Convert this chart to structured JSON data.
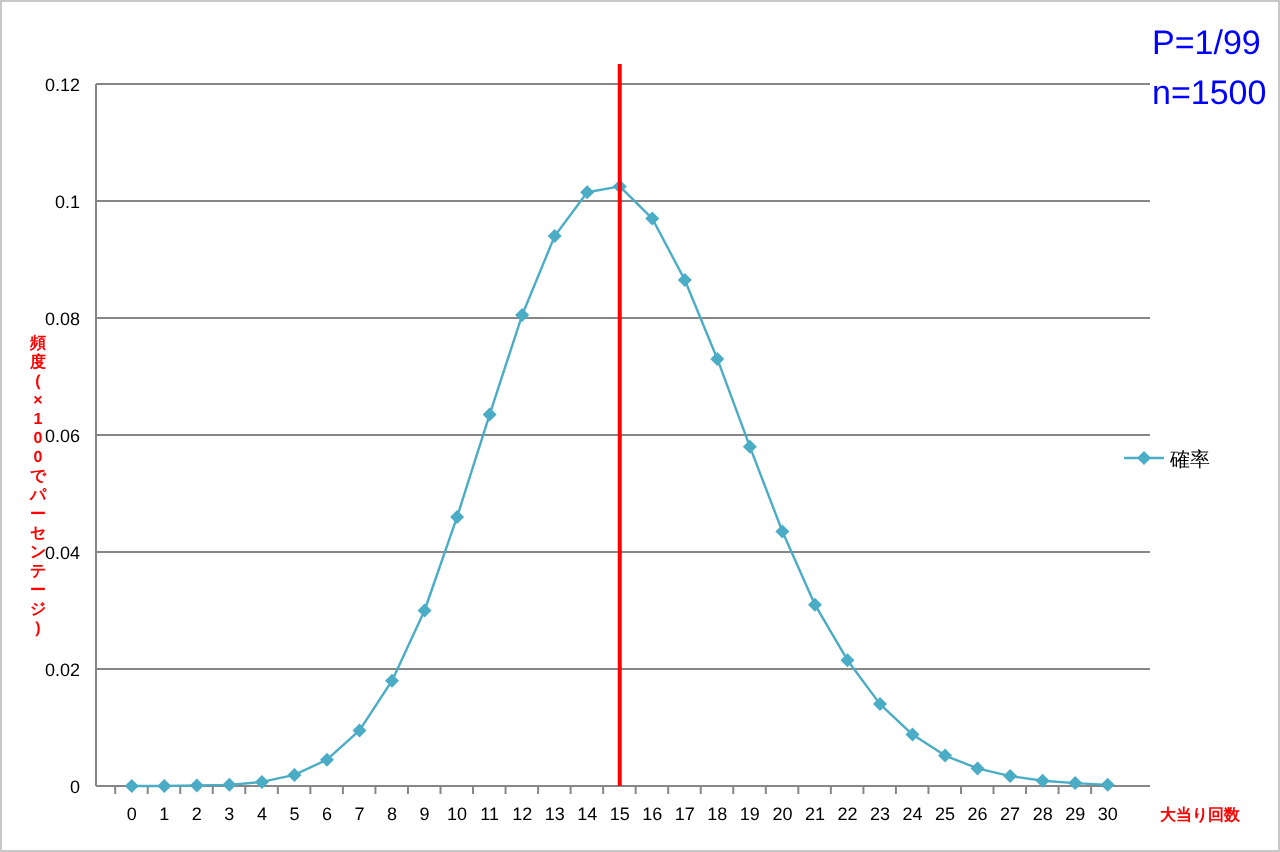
{
  "chart_data": {
    "type": "line",
    "ylabel": "頻度(×100でパーセンテージ)",
    "xlabel": "大当り回数",
    "annotations": [
      "P=1/99",
      "n=1500"
    ],
    "x": [
      0,
      1,
      2,
      3,
      4,
      5,
      6,
      7,
      8,
      9,
      10,
      11,
      12,
      13,
      14,
      15,
      16,
      17,
      18,
      19,
      20,
      21,
      22,
      23,
      24,
      25,
      26,
      27,
      28,
      29,
      30
    ],
    "xlim": [
      -1.1,
      31.3
    ],
    "xticks": [
      0,
      1,
      2,
      3,
      4,
      5,
      6,
      7,
      8,
      9,
      10,
      11,
      12,
      13,
      14,
      15,
      16,
      17,
      18,
      19,
      20,
      21,
      22,
      23,
      24,
      25,
      26,
      27,
      28,
      29,
      30
    ],
    "ylim": [
      0,
      0.12
    ],
    "yticks": [
      0,
      0.02,
      0.04,
      0.06,
      0.08,
      0.1,
      0.12
    ],
    "grid": "y",
    "legend": "right",
    "marker": "diamond",
    "series": [
      {
        "name": "確率",
        "color": "#4bacc6",
        "values": [
          0,
          0,
          0.0001,
          0.0002,
          0.0007,
          0.0019,
          0.0045,
          0.0095,
          0.018,
          0.03,
          0.046,
          0.0635,
          0.0805,
          0.094,
          0.1015,
          0.1025,
          0.097,
          0.0865,
          0.073,
          0.058,
          0.0435,
          0.031,
          0.0215,
          0.014,
          0.0088,
          0.0052,
          0.003,
          0.0017,
          0.0009,
          0.0005,
          0.0002
        ]
      }
    ],
    "ref_lines": [
      {
        "axis": "x",
        "value": 15,
        "color": "#ff0000"
      }
    ]
  }
}
